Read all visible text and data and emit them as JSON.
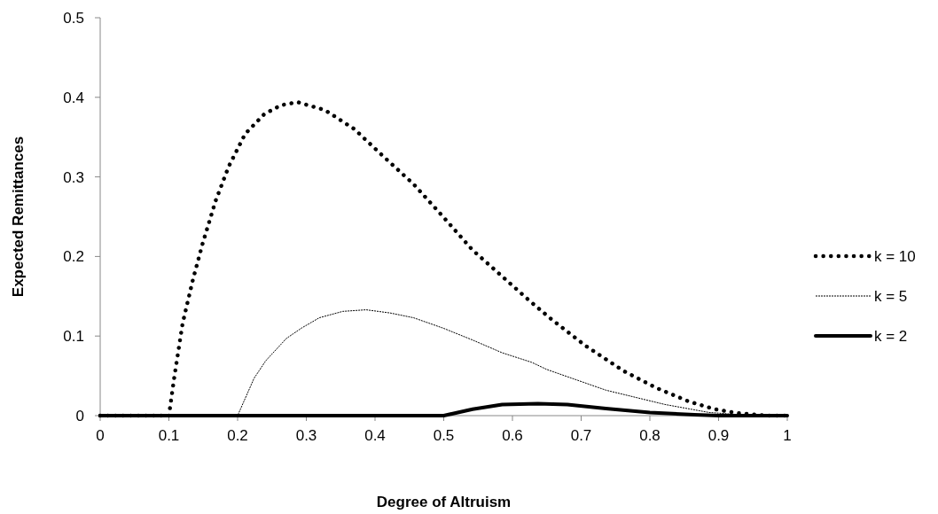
{
  "chart_data": {
    "type": "line",
    "xlabel": "Degree of Altruism",
    "ylabel": "Expected Remittances",
    "xlim": [
      0,
      1
    ],
    "ylim": [
      0,
      0.5
    ],
    "xticks": [
      0,
      0.1,
      0.2,
      0.3,
      0.4,
      0.5,
      0.6,
      0.7,
      0.8,
      0.9,
      1
    ],
    "yticks": [
      0,
      0.1,
      0.2,
      0.3,
      0.4,
      0.5
    ],
    "grid": false,
    "legend": "right",
    "marker": "none",
    "series": [
      {
        "name": "k = 10",
        "color": "#000000",
        "line_style": "dotted",
        "x": [
          0,
          0.1,
          0.108,
          0.12,
          0.135,
          0.149,
          0.168,
          0.187,
          0.211,
          0.239,
          0.263,
          0.287,
          0.327,
          0.37,
          0.413,
          0.456,
          0.499,
          0.542,
          0.585,
          0.624,
          0.654,
          0.706,
          0.762,
          0.809,
          0.856,
          0.895,
          0.929,
          0.972,
          1
        ],
        "values": [
          0,
          0,
          0.049,
          0.116,
          0.171,
          0.216,
          0.27,
          0.313,
          0.354,
          0.379,
          0.39,
          0.394,
          0.384,
          0.36,
          0.325,
          0.291,
          0.25,
          0.208,
          0.175,
          0.145,
          0.123,
          0.088,
          0.056,
          0.035,
          0.018,
          0.008,
          0.003,
          0,
          0
        ]
      },
      {
        "name": "k = 5",
        "color": "#000000",
        "line_style": "dashed",
        "x": [
          0,
          0.2,
          0.224,
          0.241,
          0.271,
          0.293,
          0.319,
          0.353,
          0.387,
          0.422,
          0.456,
          0.499,
          0.542,
          0.585,
          0.628,
          0.65,
          0.736,
          0.822,
          0.886,
          0.95,
          1
        ],
        "values": [
          0,
          0,
          0.047,
          0.069,
          0.097,
          0.11,
          0.123,
          0.131,
          0.133,
          0.129,
          0.123,
          0.11,
          0.095,
          0.079,
          0.067,
          0.058,
          0.032,
          0.014,
          0.004,
          0,
          0
        ]
      },
      {
        "name": "k = 2",
        "color": "#000000",
        "line_style": "solid",
        "x": [
          0,
          0.5,
          0.542,
          0.585,
          0.637,
          0.68,
          0.736,
          0.8,
          0.865,
          0.9,
          1
        ],
        "values": [
          0,
          0,
          0.008,
          0.014,
          0.015,
          0.014,
          0.009,
          0.004,
          0.001,
          0,
          0
        ]
      }
    ]
  }
}
